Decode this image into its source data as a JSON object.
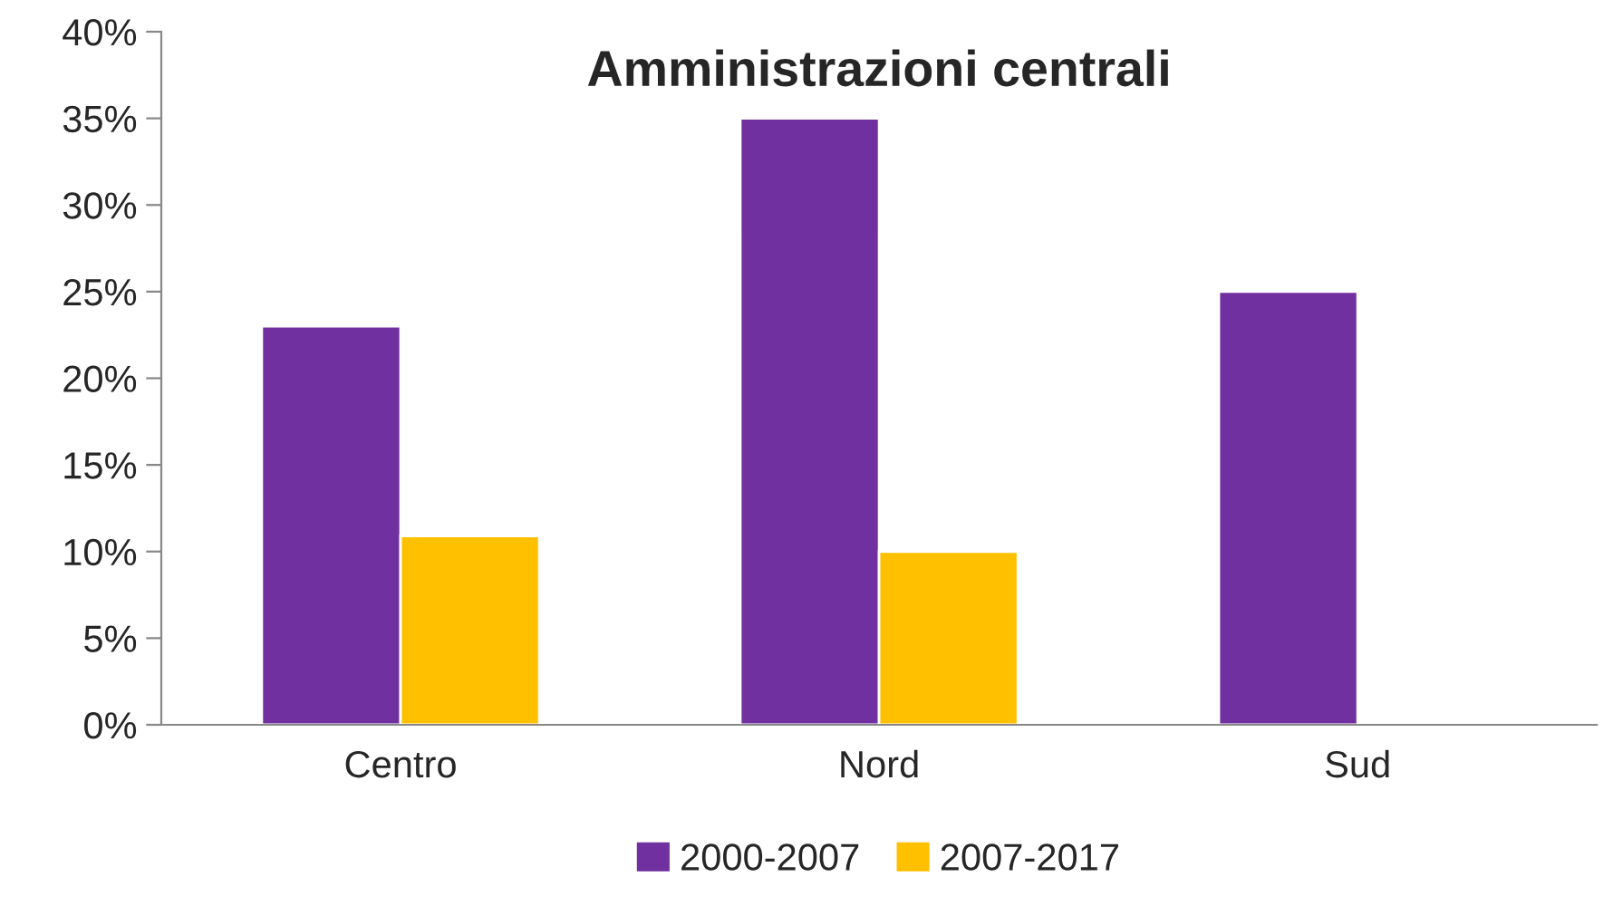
{
  "chart_data": {
    "type": "bar",
    "title": "Amministrazioni centrali",
    "categories": [
      "Centro",
      "Nord",
      "Sud"
    ],
    "series": [
      {
        "name": "2000-2007",
        "color": "#7030a0",
        "values": [
          23,
          35,
          25
        ]
      },
      {
        "name": "2007-2017",
        "color": "#ffc000",
        "values": [
          10.9,
          10,
          null
        ]
      }
    ],
    "ylim": [
      0,
      40
    ],
    "yticks": [
      {
        "value": 0,
        "label": "0%"
      },
      {
        "value": 5,
        "label": "5%"
      },
      {
        "value": 10,
        "label": "10%"
      },
      {
        "value": 15,
        "label": "15%"
      },
      {
        "value": 20,
        "label": "20%"
      },
      {
        "value": 25,
        "label": "25%"
      },
      {
        "value": 30,
        "label": "30%"
      },
      {
        "value": 35,
        "label": "35%"
      },
      {
        "value": 40,
        "label": "40%"
      }
    ],
    "grid": false,
    "legend": "bottom"
  }
}
